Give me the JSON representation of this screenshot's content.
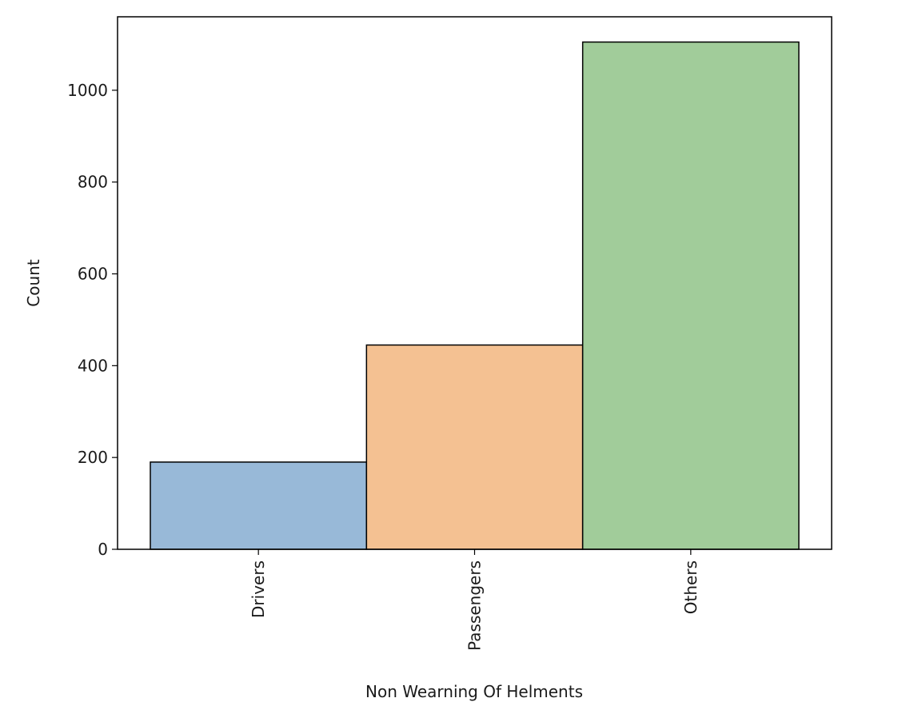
{
  "chart_data": {
    "type": "bar",
    "title": "",
    "xlabel": "Non Wearning Of Helments",
    "ylabel": "Count",
    "categories": [
      "Drivers",
      "Passengers",
      "Others"
    ],
    "values": [
      190,
      445,
      1105
    ],
    "colors": [
      "#98b9d8",
      "#f4c192",
      "#a1cc9a"
    ],
    "edge_color": "#000000",
    "ylim": [
      0,
      1160
    ],
    "yticks": [
      0,
      200,
      400,
      600,
      800,
      1000
    ],
    "ytick_labels": [
      "0",
      "200",
      "400",
      "600",
      "800",
      "1000"
    ],
    "grid": false,
    "legend": "none"
  }
}
